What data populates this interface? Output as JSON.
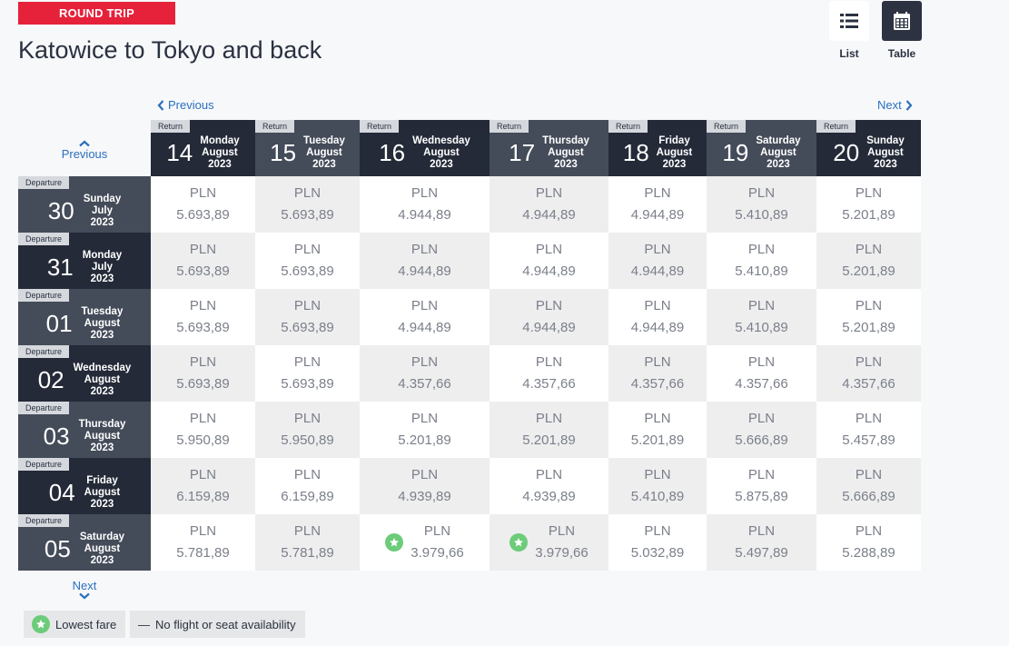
{
  "header": {
    "badge": "ROUND TRIP",
    "title": "Katowice to Tokyo and back"
  },
  "view_toggle": {
    "list_label": "List",
    "list_icon": "list-icon",
    "table_label": "Table",
    "table_icon": "calendar-icon",
    "active": "Table"
  },
  "nav": {
    "previous": "Previous",
    "next": "Next"
  },
  "return_columns": [
    {
      "tag": "Return",
      "day": "14",
      "weekday": "Monday",
      "month": "August",
      "year": "2023"
    },
    {
      "tag": "Return",
      "day": "15",
      "weekday": "Tuesday",
      "month": "August",
      "year": "2023"
    },
    {
      "tag": "Return",
      "day": "16",
      "weekday": "Wednesday",
      "month": "August",
      "year": "2023"
    },
    {
      "tag": "Return",
      "day": "17",
      "weekday": "Thursday",
      "month": "August",
      "year": "2023"
    },
    {
      "tag": "Return",
      "day": "18",
      "weekday": "Friday",
      "month": "August",
      "year": "2023"
    },
    {
      "tag": "Return",
      "day": "19",
      "weekday": "Saturday",
      "month": "August",
      "year": "2023"
    },
    {
      "tag": "Return",
      "day": "20",
      "weekday": "Sunday",
      "month": "August",
      "year": "2023"
    }
  ],
  "departure_rows": [
    {
      "tag": "Departure",
      "day": "30",
      "weekday": "Sunday",
      "month": "July",
      "year": "2023",
      "prices": [
        {
          "currency": "PLN",
          "amount": "5.693,89"
        },
        {
          "currency": "PLN",
          "amount": "5.693,89"
        },
        {
          "currency": "PLN",
          "amount": "4.944,89"
        },
        {
          "currency": "PLN",
          "amount": "4.944,89"
        },
        {
          "currency": "PLN",
          "amount": "4.944,89"
        },
        {
          "currency": "PLN",
          "amount": "5.410,89"
        },
        {
          "currency": "PLN",
          "amount": "5.201,89"
        }
      ]
    },
    {
      "tag": "Departure",
      "day": "31",
      "weekday": "Monday",
      "month": "July",
      "year": "2023",
      "prices": [
        {
          "currency": "PLN",
          "amount": "5.693,89"
        },
        {
          "currency": "PLN",
          "amount": "5.693,89"
        },
        {
          "currency": "PLN",
          "amount": "4.944,89"
        },
        {
          "currency": "PLN",
          "amount": "4.944,89"
        },
        {
          "currency": "PLN",
          "amount": "4.944,89"
        },
        {
          "currency": "PLN",
          "amount": "5.410,89"
        },
        {
          "currency": "PLN",
          "amount": "5.201,89"
        }
      ]
    },
    {
      "tag": "Departure",
      "day": "01",
      "weekday": "Tuesday",
      "month": "August",
      "year": "2023",
      "prices": [
        {
          "currency": "PLN",
          "amount": "5.693,89"
        },
        {
          "currency": "PLN",
          "amount": "5.693,89"
        },
        {
          "currency": "PLN",
          "amount": "4.944,89"
        },
        {
          "currency": "PLN",
          "amount": "4.944,89"
        },
        {
          "currency": "PLN",
          "amount": "4.944,89"
        },
        {
          "currency": "PLN",
          "amount": "5.410,89"
        },
        {
          "currency": "PLN",
          "amount": "5.201,89"
        }
      ]
    },
    {
      "tag": "Departure",
      "day": "02",
      "weekday": "Wednesday",
      "month": "August",
      "year": "2023",
      "prices": [
        {
          "currency": "PLN",
          "amount": "5.693,89"
        },
        {
          "currency": "PLN",
          "amount": "5.693,89"
        },
        {
          "currency": "PLN",
          "amount": "4.357,66"
        },
        {
          "currency": "PLN",
          "amount": "4.357,66"
        },
        {
          "currency": "PLN",
          "amount": "4.357,66"
        },
        {
          "currency": "PLN",
          "amount": "4.357,66"
        },
        {
          "currency": "PLN",
          "amount": "4.357,66"
        }
      ]
    },
    {
      "tag": "Departure",
      "day": "03",
      "weekday": "Thursday",
      "month": "August",
      "year": "2023",
      "prices": [
        {
          "currency": "PLN",
          "amount": "5.950,89"
        },
        {
          "currency": "PLN",
          "amount": "5.950,89"
        },
        {
          "currency": "PLN",
          "amount": "5.201,89"
        },
        {
          "currency": "PLN",
          "amount": "5.201,89"
        },
        {
          "currency": "PLN",
          "amount": "5.201,89"
        },
        {
          "currency": "PLN",
          "amount": "5.666,89"
        },
        {
          "currency": "PLN",
          "amount": "5.457,89"
        }
      ]
    },
    {
      "tag": "Departure",
      "day": "04",
      "weekday": "Friday",
      "month": "August",
      "year": "2023",
      "prices": [
        {
          "currency": "PLN",
          "amount": "6.159,89"
        },
        {
          "currency": "PLN",
          "amount": "6.159,89"
        },
        {
          "currency": "PLN",
          "amount": "4.939,89"
        },
        {
          "currency": "PLN",
          "amount": "4.939,89"
        },
        {
          "currency": "PLN",
          "amount": "5.410,89"
        },
        {
          "currency": "PLN",
          "amount": "5.875,89"
        },
        {
          "currency": "PLN",
          "amount": "5.666,89"
        }
      ]
    },
    {
      "tag": "Departure",
      "day": "05",
      "weekday": "Saturday",
      "month": "August",
      "year": "2023",
      "prices": [
        {
          "currency": "PLN",
          "amount": "5.781,89"
        },
        {
          "currency": "PLN",
          "amount": "5.781,89"
        },
        {
          "currency": "PLN",
          "amount": "3.979,66",
          "lowest": true
        },
        {
          "currency": "PLN",
          "amount": "3.979,66",
          "lowest": true
        },
        {
          "currency": "PLN",
          "amount": "5.032,89"
        },
        {
          "currency": "PLN",
          "amount": "5.497,89"
        },
        {
          "currency": "PLN",
          "amount": "5.288,89"
        }
      ]
    }
  ],
  "legend": {
    "lowest_fare": "Lowest fare",
    "lowest_fare_icon": "star-icon",
    "no_flight": "No flight or seat availability",
    "no_flight_symbol": "—"
  },
  "colors": {
    "badge_red": "#e6213a",
    "header_dark": "#242a38",
    "header_mid": "#444b59",
    "link_blue": "#2a6fbf",
    "lowest_green": "#6ccc7a"
  }
}
